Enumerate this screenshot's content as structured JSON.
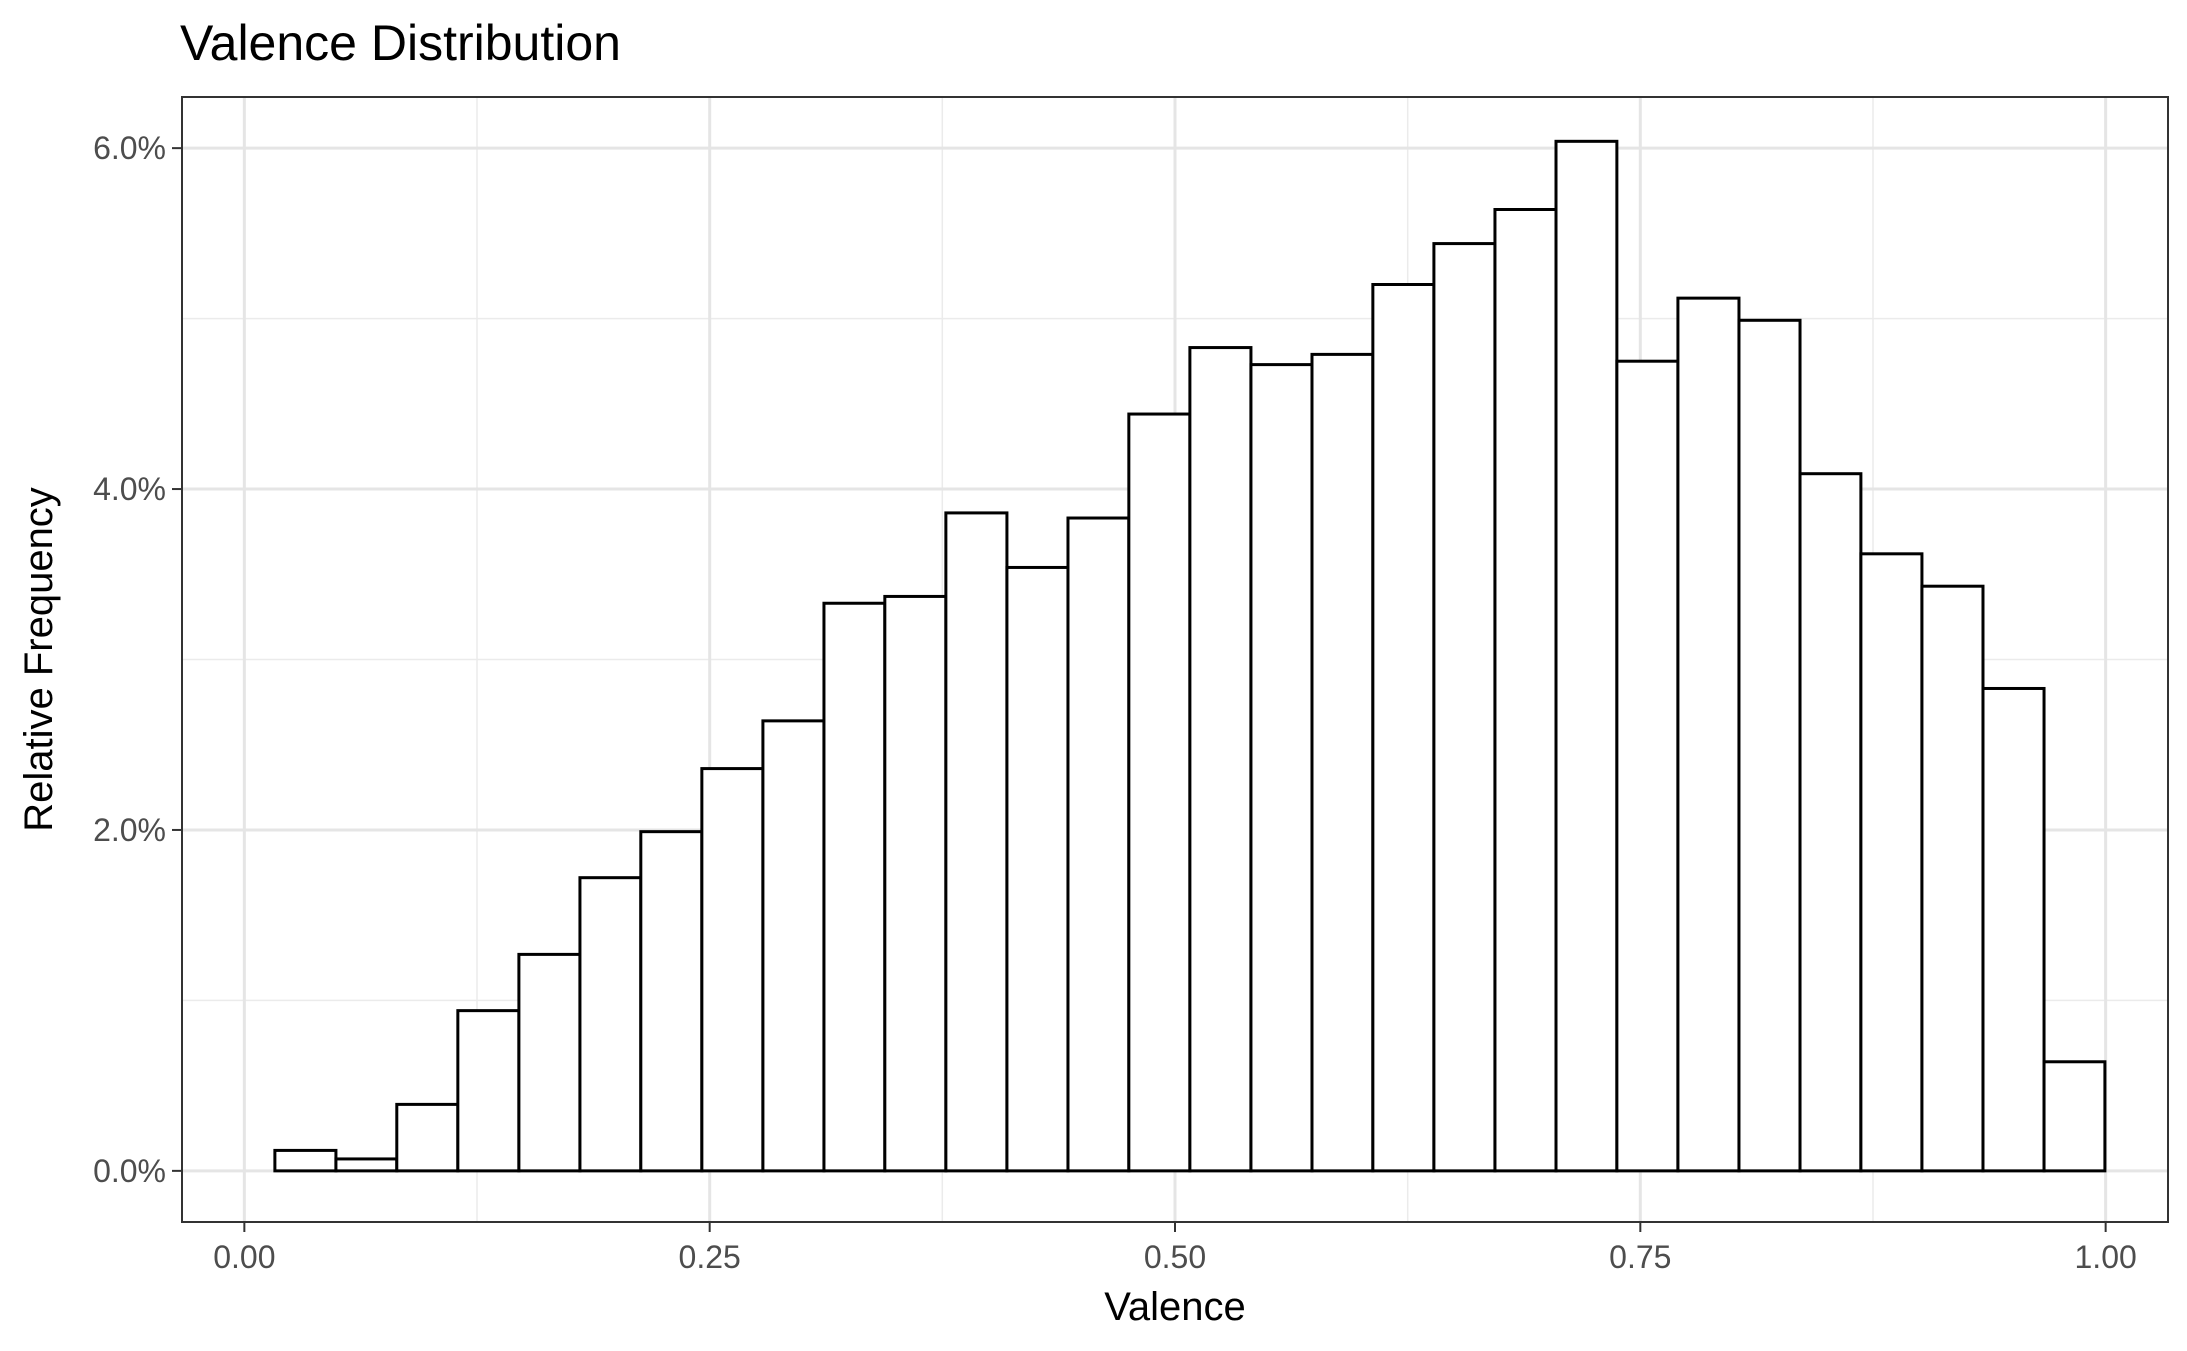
{
  "chart_data": {
    "type": "bar",
    "title": "Valence Distribution",
    "xlabel": "Valence",
    "ylabel": "Relative Frequency",
    "xlim": [
      -0.0335,
      1.0335
    ],
    "ylim": [
      -0.003,
      0.063
    ],
    "x_ticks": [
      0.0,
      0.25,
      0.5,
      0.75,
      1.0
    ],
    "x_tick_labels": [
      "0.00",
      "0.25",
      "0.50",
      "0.75",
      "1.00"
    ],
    "y_ticks": [
      0.0,
      0.02,
      0.04,
      0.06
    ],
    "y_tick_labels": [
      "0.0%",
      "2.0%",
      "4.0%",
      "6.0%"
    ],
    "grid": true,
    "bin_edges": [
      0.0164,
      0.0492,
      0.0819,
      0.1147,
      0.1475,
      0.1803,
      0.213,
      0.2458,
      0.2786,
      0.3114,
      0.3441,
      0.3769,
      0.4097,
      0.4425,
      0.4752,
      0.508,
      0.5408,
      0.5736,
      0.6063,
      0.6391,
      0.6719,
      0.7047,
      0.7374,
      0.7702,
      0.803,
      0.8358,
      0.8685,
      0.9013,
      0.9341,
      0.9669,
      0.9996
    ],
    "values": [
      0.0012,
      0.0007,
      0.0039,
      0.0094,
      0.0127,
      0.0172,
      0.0199,
      0.0236,
      0.0264,
      0.0333,
      0.0337,
      0.0386,
      0.0354,
      0.0383,
      0.0444,
      0.0483,
      0.0473,
      0.0479,
      0.052,
      0.0544,
      0.0564,
      0.0604,
      0.0475,
      0.0512,
      0.0499,
      0.0409,
      0.0362,
      0.0343,
      0.0283,
      0.0064
    ]
  }
}
